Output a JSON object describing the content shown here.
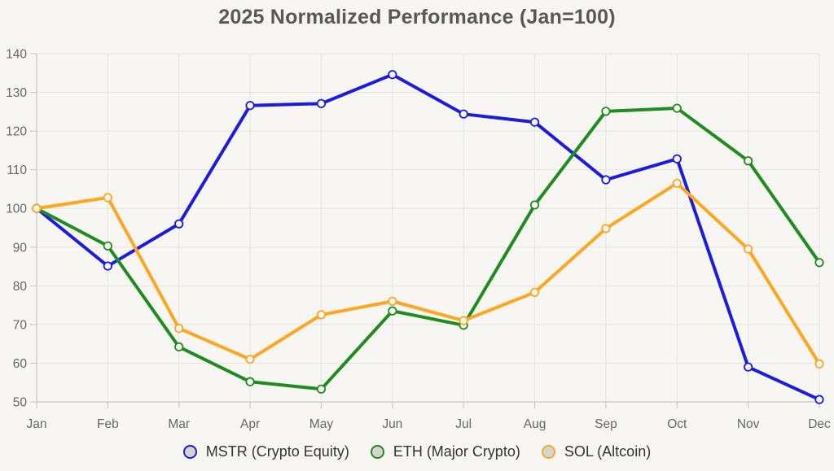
{
  "chart_data": {
    "type": "line",
    "title": "2025 Normalized Performance (Jan=100)",
    "x": [
      "Jan",
      "Feb",
      "Mar",
      "Apr",
      "May",
      "Jun",
      "Jul",
      "Aug",
      "Sep",
      "Oct",
      "Nov",
      "Dec"
    ],
    "series": [
      {
        "name": "MSTR (Crypto Equity)",
        "color": "#1c1ce0",
        "values": [
          100,
          85.1,
          96.0,
          126.6,
          127.1,
          134.6,
          124.4,
          122.3,
          107.4,
          112.8,
          59.0,
          50.6
        ]
      },
      {
        "name": "ETH (Major Crypto)",
        "color": "#1f8c1f",
        "values": [
          100,
          90.3,
          64.2,
          55.2,
          53.3,
          73.5,
          69.8,
          100.9,
          125.1,
          125.9,
          112.3,
          86.0
        ]
      },
      {
        "name": "SOL (Altcoin)",
        "color": "#ffa620",
        "values": [
          100,
          102.8,
          69.0,
          61.0,
          72.5,
          76.0,
          71.0,
          78.3,
          94.8,
          106.5,
          89.5,
          59.8
        ]
      }
    ],
    "ylim": [
      50,
      140
    ],
    "ytick_step": 10,
    "yticks": [
      50,
      60,
      70,
      80,
      90,
      100,
      110,
      120,
      130,
      140
    ],
    "grid": true,
    "legend_position": "bottom",
    "colors": {
      "background": "#f7f6f2",
      "grid": "#e4e3df",
      "axis": "#c6c5c1",
      "tick_label": "#666666",
      "title": "#585858",
      "legend_text": "#333333",
      "legend_marker_fill": "#d6d4d0"
    }
  }
}
